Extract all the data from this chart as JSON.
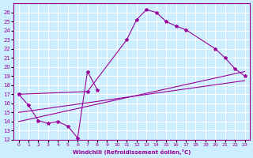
{
  "xlabel": "Windchill (Refroidissement éolien,°C)",
  "bg_color": "#cceeff",
  "grid_color": "#ffffff",
  "line_color": "#990099",
  "xlim": [
    0,
    23
  ],
  "ylim": [
    12,
    27
  ],
  "xtick_vals": [
    0,
    1,
    2,
    3,
    4,
    5,
    6,
    7,
    8,
    9,
    10,
    11,
    12,
    13,
    14,
    15,
    16,
    17,
    18,
    19,
    20,
    21,
    22,
    23
  ],
  "ytick_vals": [
    12,
    13,
    14,
    15,
    16,
    17,
    18,
    19,
    20,
    21,
    22,
    23,
    24,
    25,
    26
  ],
  "series": [
    {
      "x": [
        0,
        1,
        2,
        3,
        4,
        5,
        6,
        7,
        8
      ],
      "y": [
        17.0,
        15.8,
        14.1,
        13.8,
        14.0,
        13.5,
        12.2,
        19.5,
        17.5
      ]
    },
    {
      "x": [
        0,
        7,
        11,
        12,
        13,
        14,
        15,
        16,
        17,
        20,
        21,
        22,
        23
      ],
      "y": [
        17.0,
        17.3,
        23.0,
        25.2,
        26.3,
        26.0,
        25.0,
        24.5,
        24.1,
        22.0,
        21.0,
        19.8,
        19.0
      ]
    },
    {
      "x": [
        0,
        23
      ],
      "y": [
        15.0,
        18.5
      ]
    },
    {
      "x": [
        0,
        23
      ],
      "y": [
        14.0,
        19.5
      ]
    }
  ]
}
